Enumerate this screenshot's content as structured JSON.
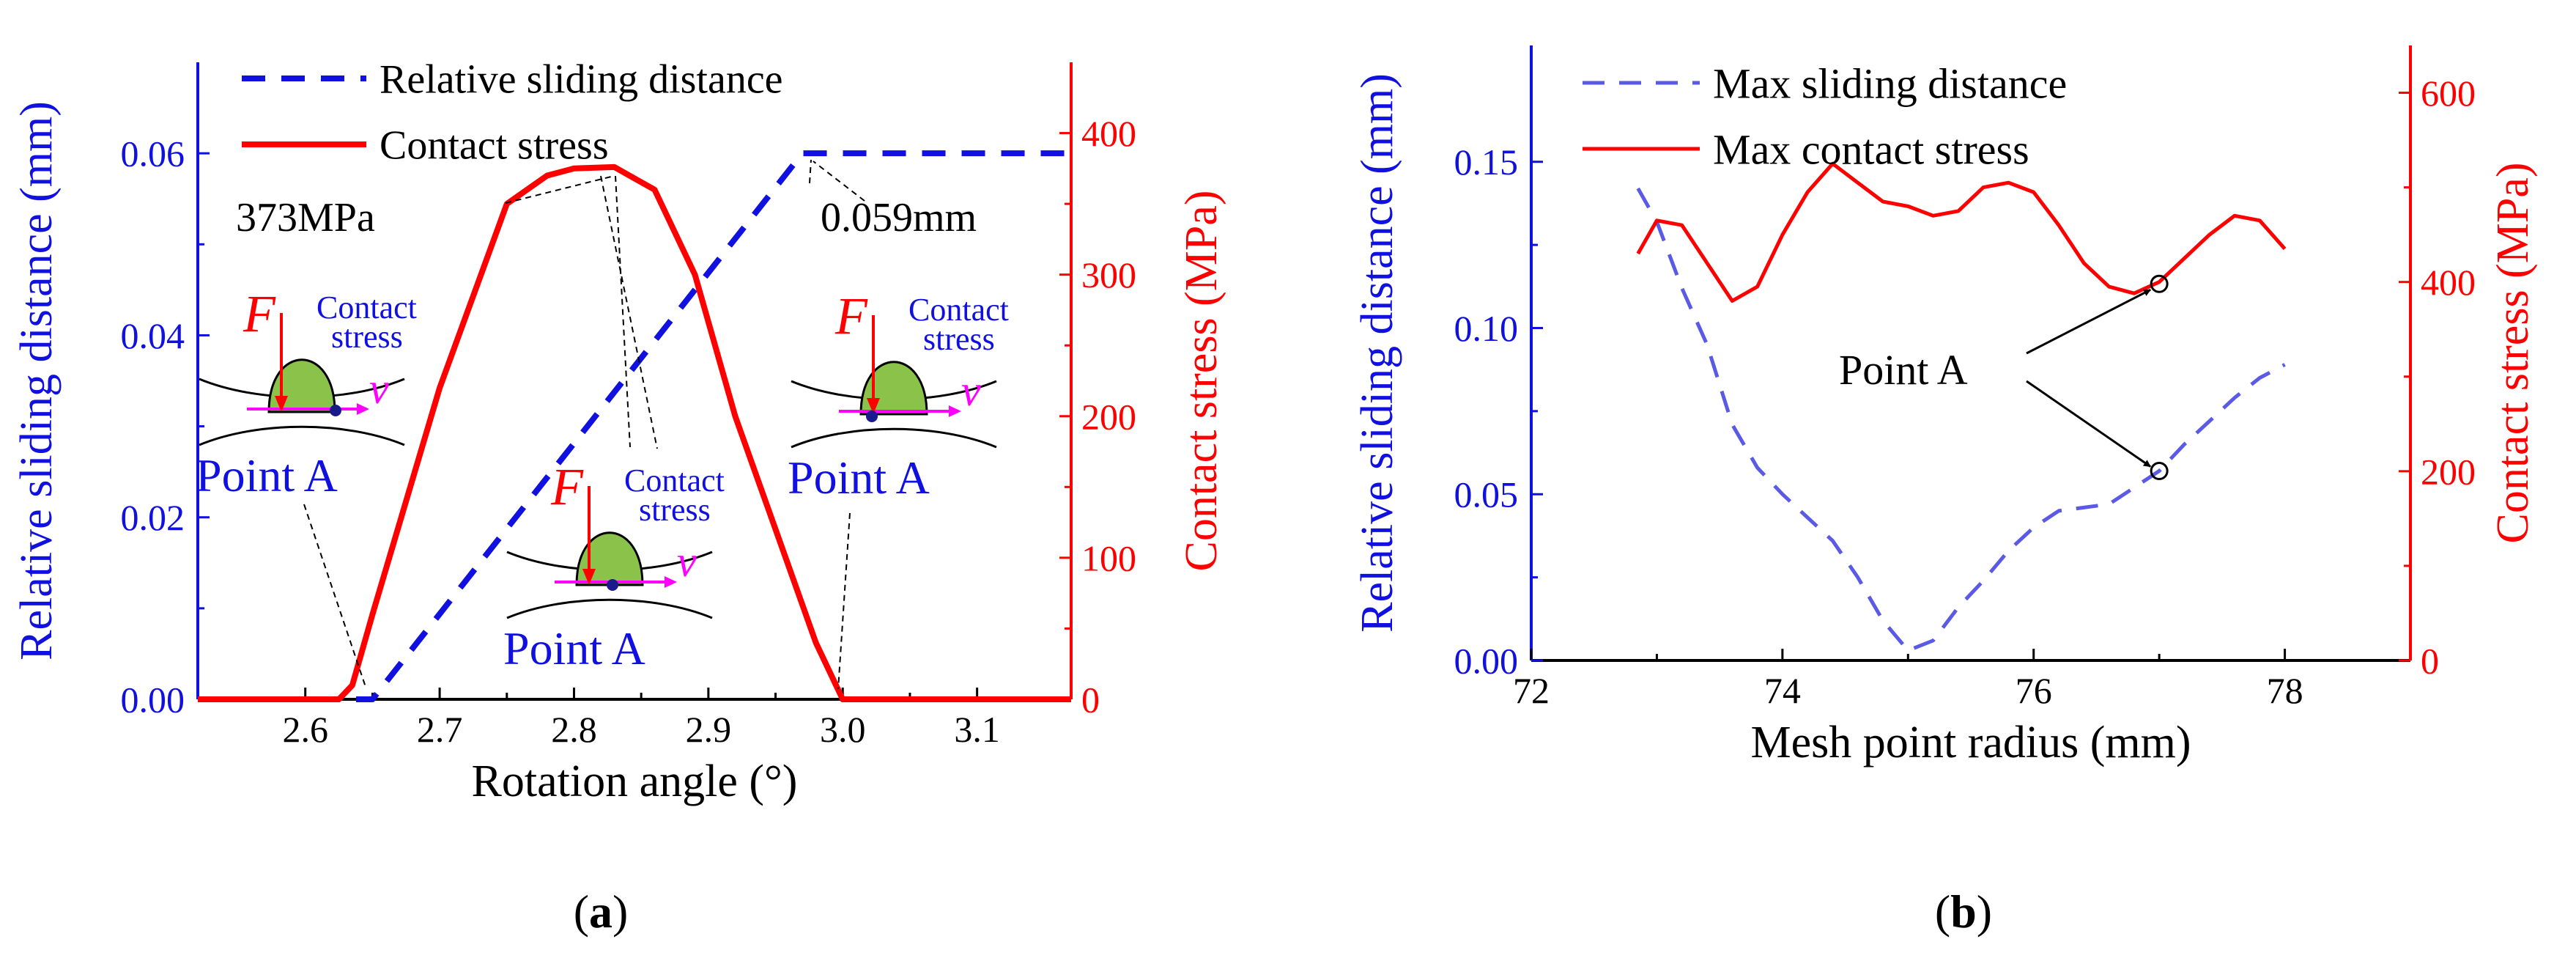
{
  "colors": {
    "blue": "#1010e0",
    "red": "#ff0000",
    "black": "#000000",
    "magenta": "#ff00ff",
    "green": "#8bc34a",
    "dash": "#5a5ae6"
  },
  "captions": {
    "a": "a",
    "b": "b"
  },
  "chart_data": [
    {
      "id": "a",
      "type": "line",
      "xlabel": "Rotation angle (°)",
      "ylabel_left": "Relative sliding distance (mm)",
      "ylabel_right": "Contact stress (MPa)",
      "xlim": [
        2.52,
        3.17
      ],
      "xticks": [
        2.6,
        2.7,
        2.8,
        2.9,
        3.0,
        3.1
      ],
      "xtick_labels": [
        "2.6",
        "2.7",
        "2.8",
        "2.9",
        "3.0",
        "3.1"
      ],
      "ylim_left": [
        0,
        0.07
      ],
      "yticks_left": [
        0.0,
        0.02,
        0.04,
        0.06
      ],
      "ytick_labels_left": [
        "0.00",
        "0.02",
        "0.04",
        "0.06"
      ],
      "ylim_right": [
        0,
        450
      ],
      "yticks_right": [
        0,
        100,
        200,
        300,
        400
      ],
      "ytick_labels_right": [
        "0",
        "100",
        "200",
        "300",
        "400"
      ],
      "legend": [
        "Relative sliding distance",
        "Contact stress"
      ],
      "series": [
        {
          "name": "Relative sliding distance",
          "axis": "left",
          "style": "dashed",
          "x": [
            2.52,
            2.65,
            2.97,
            3.17
          ],
          "y": [
            0,
            0,
            0.06,
            0.06
          ]
        },
        {
          "name": "Contact stress",
          "axis": "right",
          "style": "solid",
          "x": [
            2.52,
            2.625,
            2.635,
            2.65,
            2.7,
            2.75,
            2.78,
            2.8,
            2.83,
            2.86,
            2.89,
            2.92,
            2.95,
            2.98,
            3.0,
            3.17
          ],
          "y": [
            0,
            0,
            10,
            60,
            220,
            350,
            370,
            375,
            376,
            360,
            300,
            200,
            120,
            40,
            0,
            0
          ]
        }
      ],
      "annotations": {
        "stress_peak": "373MPa",
        "slide_max": "0.059mm",
        "force": "F",
        "velocity": "v",
        "contact_line1": "Contact",
        "contact_line2": "stress",
        "point": "Point A"
      }
    },
    {
      "id": "b",
      "type": "line",
      "xlabel": "Mesh point radius (mm)",
      "ylabel_left": "Relative sliding distance (mm)",
      "ylabel_right": "Contact stress (MPa)",
      "xlim": [
        72,
        79
      ],
      "xticks": [
        72,
        74,
        76,
        78
      ],
      "xtick_labels": [
        "72",
        "74",
        "76",
        "78"
      ],
      "ylim_left": [
        0,
        0.185
      ],
      "yticks_left": [
        0.0,
        0.05,
        0.1,
        0.15
      ],
      "ytick_labels_left": [
        "0.00",
        "0.05",
        "0.10",
        "0.15"
      ],
      "ylim_right": [
        0,
        650
      ],
      "yticks_right": [
        0,
        200,
        400,
        600
      ],
      "ytick_labels_right": [
        "0",
        "200",
        "400",
        "600"
      ],
      "legend": [
        "Max sliding distance",
        "Max contact stress"
      ],
      "series": [
        {
          "name": "Max sliding distance",
          "axis": "left",
          "style": "dashed",
          "x": [
            72.85,
            73.0,
            73.2,
            73.4,
            73.6,
            73.8,
            74.0,
            74.2,
            74.4,
            74.6,
            74.8,
            75.0,
            75.2,
            75.4,
            75.6,
            75.8,
            76.0,
            76.2,
            76.4,
            76.6,
            76.8,
            77.0,
            77.2,
            77.4,
            77.6,
            77.8,
            78.0
          ],
          "y": [
            0.142,
            0.132,
            0.112,
            0.095,
            0.071,
            0.058,
            0.05,
            0.043,
            0.036,
            0.025,
            0.012,
            0.003,
            0.006,
            0.016,
            0.024,
            0.033,
            0.04,
            0.045,
            0.046,
            0.047,
            0.052,
            0.057,
            0.065,
            0.072,
            0.079,
            0.085,
            0.089
          ]
        },
        {
          "name": "Max contact stress",
          "axis": "right",
          "style": "solid",
          "x": [
            72.85,
            73.0,
            73.2,
            73.4,
            73.6,
            73.8,
            74.0,
            74.2,
            74.4,
            74.6,
            74.8,
            75.0,
            75.2,
            75.4,
            75.6,
            75.8,
            76.0,
            76.2,
            76.4,
            76.6,
            76.8,
            77.0,
            77.2,
            77.4,
            77.6,
            77.8,
            78.0
          ],
          "y": [
            430,
            465,
            460,
            420,
            380,
            395,
            450,
            495,
            525,
            505,
            485,
            480,
            470,
            475,
            500,
            505,
            495,
            460,
            420,
            395,
            388,
            400,
            425,
            450,
            470,
            465,
            435
          ]
        }
      ],
      "annotations": {
        "point": "Point A",
        "point_a_stress": [
          77.0,
          398
        ],
        "point_a_slide": [
          77.0,
          0.057
        ]
      }
    }
  ]
}
